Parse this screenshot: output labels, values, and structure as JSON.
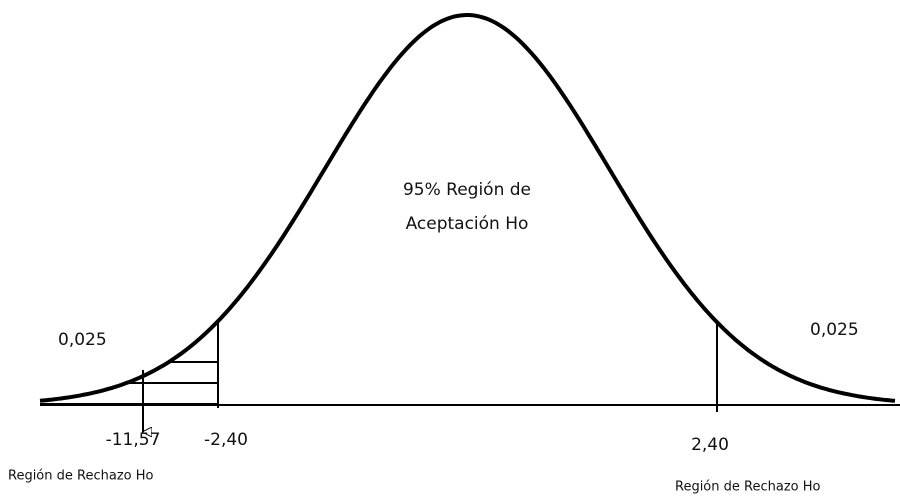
{
  "center_label": {
    "line1": "95% Región de",
    "line2": "Aceptación Ho"
  },
  "left_tail": {
    "probability": "0,025",
    "region": "Región de Rechazo Ho"
  },
  "right_tail": {
    "probability": "0,025",
    "region": "Región de Rechazo Ho"
  },
  "axis_labels": {
    "statistic": "-11,57",
    "left_critical": "-2,40",
    "right_critical": "2,40"
  }
}
